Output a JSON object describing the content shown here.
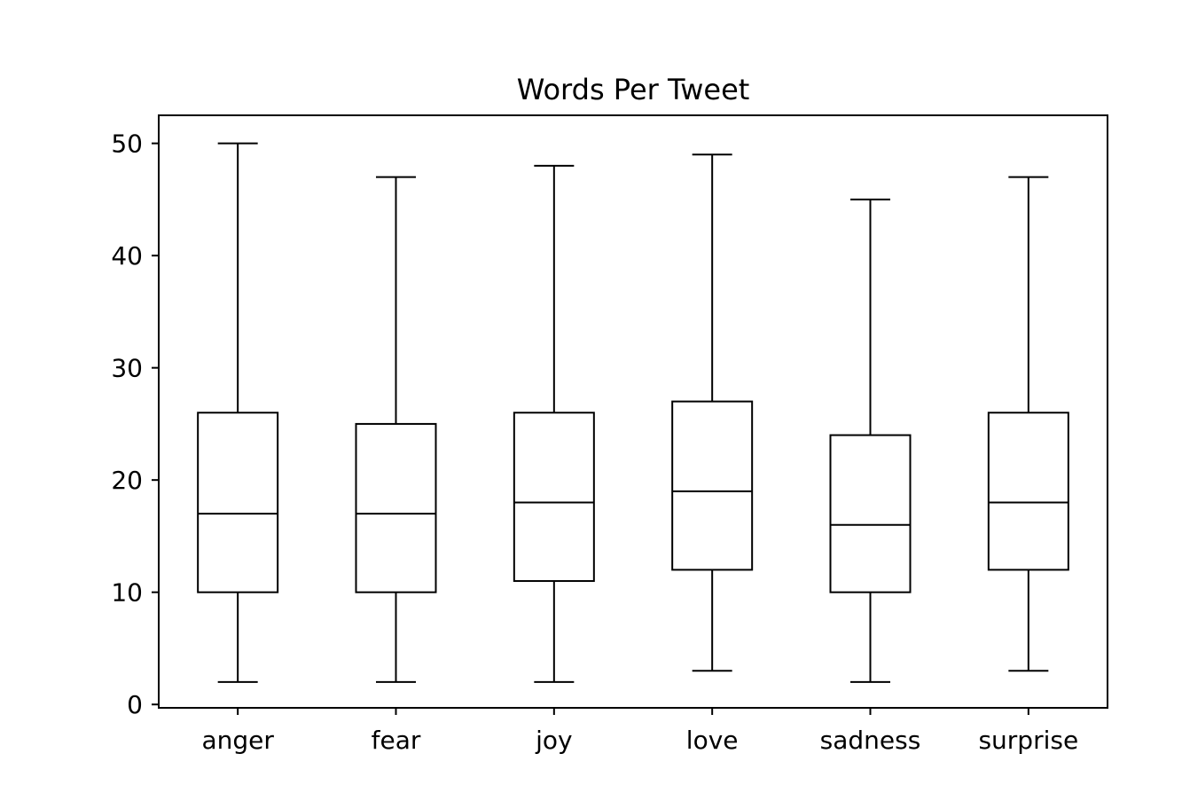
{
  "chart_data": {
    "type": "box",
    "title": "Words Per Tweet",
    "xlabel": "",
    "ylabel": "",
    "ylim": [
      -0.3,
      52.5
    ],
    "yticks": [
      0,
      10,
      20,
      30,
      40,
      50
    ],
    "grid": false,
    "categories": [
      "anger",
      "fear",
      "joy",
      "love",
      "sadness",
      "surprise"
    ],
    "boxes": [
      {
        "category": "anger",
        "whisker_low": 2,
        "q1": 10,
        "median": 17,
        "q3": 26,
        "whisker_high": 50
      },
      {
        "category": "fear",
        "whisker_low": 2,
        "q1": 10,
        "median": 17,
        "q3": 25,
        "whisker_high": 47
      },
      {
        "category": "joy",
        "whisker_low": 2,
        "q1": 11,
        "median": 18,
        "q3": 26,
        "whisker_high": 48
      },
      {
        "category": "love",
        "whisker_low": 3,
        "q1": 12,
        "median": 19,
        "q3": 27,
        "whisker_high": 49
      },
      {
        "category": "sadness",
        "whisker_low": 2,
        "q1": 10,
        "median": 16,
        "q3": 24,
        "whisker_high": 45
      },
      {
        "category": "surprise",
        "whisker_low": 3,
        "q1": 12,
        "median": 18,
        "q3": 26,
        "whisker_high": 47
      }
    ],
    "colors": {
      "line": "#000000",
      "background": "#ffffff"
    }
  }
}
